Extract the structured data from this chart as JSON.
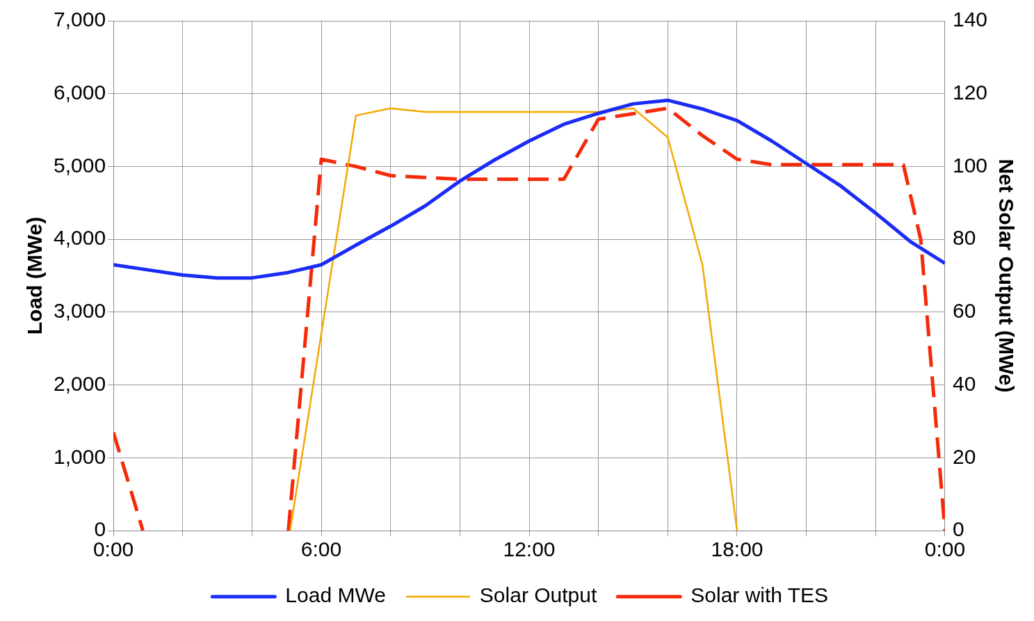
{
  "chart_data": {
    "type": "line",
    "ylabel": "Load (MWe)",
    "y2label": "Net Solar Output (MWe)",
    "series": [
      {
        "name": "Load MWe",
        "color": "#1a2bf5",
        "axis": "y",
        "x": [
          0,
          1,
          2,
          3,
          4,
          5,
          6,
          7,
          8,
          9,
          10,
          11,
          12,
          13,
          14,
          15,
          16,
          17,
          18,
          19,
          20,
          21,
          22,
          23,
          24
        ],
        "values": [
          3650,
          3580,
          3510,
          3470,
          3470,
          3540,
          3650,
          3920,
          4180,
          4460,
          4800,
          5090,
          5350,
          5580,
          5730,
          5860,
          5910,
          5790,
          5630,
          5350,
          5040,
          4730,
          4360,
          3970,
          3670
        ]
      },
      {
        "name": "Solar Output",
        "color": "#f5a800",
        "axis": "y2",
        "x": [
          5.1,
          7,
          8,
          9,
          14,
          15,
          16,
          17,
          18
        ],
        "values": [
          0,
          114,
          116,
          115,
          115,
          116,
          108,
          73,
          0
        ]
      },
      {
        "name": "Solar with TES",
        "color": "#f52a0a",
        "axis": "y2",
        "line_style": "dashed",
        "x": [
          0,
          0.85,
          null,
          5.05,
          6,
          7,
          8,
          9,
          10,
          13,
          14,
          15,
          16,
          17,
          18,
          19,
          20,
          22.8,
          23.3,
          24
        ],
        "values": [
          27,
          0,
          null,
          0,
          102,
          100,
          97.5,
          97,
          96.5,
          96.5,
          113,
          114.5,
          116,
          108.5,
          102,
          100.5,
          100.5,
          100.5,
          80,
          0
        ]
      }
    ],
    "xlim": [
      0,
      24
    ],
    "xticks": [
      {
        "value": 0,
        "label": "0:00"
      },
      {
        "value": 2,
        "label": null
      },
      {
        "value": 4,
        "label": null
      },
      {
        "value": 6,
        "label": "6:00"
      },
      {
        "value": 8,
        "label": null
      },
      {
        "value": 10,
        "label": null
      },
      {
        "value": 12,
        "label": "12:00"
      },
      {
        "value": 14,
        "label": null
      },
      {
        "value": 16,
        "label": null
      },
      {
        "value": 18,
        "label": "18:00"
      },
      {
        "value": 20,
        "label": null
      },
      {
        "value": 22,
        "label": null
      },
      {
        "value": 24,
        "label": "0:00"
      }
    ],
    "ylim": [
      0,
      7000
    ],
    "yticks": [
      {
        "value": 0,
        "label": "0"
      },
      {
        "value": 1000,
        "label": "1,000"
      },
      {
        "value": 2000,
        "label": "2,000"
      },
      {
        "value": 3000,
        "label": "3,000"
      },
      {
        "value": 4000,
        "label": "4,000"
      },
      {
        "value": 5000,
        "label": "5,000"
      },
      {
        "value": 6000,
        "label": "6,000"
      },
      {
        "value": 7000,
        "label": "7,000"
      }
    ],
    "y2lim": [
      0,
      140
    ],
    "y2ticks": [
      0,
      20,
      40,
      60,
      80,
      100,
      120,
      140
    ],
    "grid": true,
    "legend": "bottom",
    "marker": "none"
  }
}
